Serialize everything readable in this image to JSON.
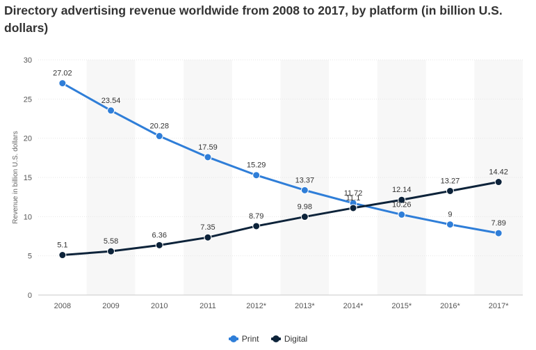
{
  "title": "Directory advertising revenue worldwide from 2008 to 2017, by platform (in billion U.S. dollars)",
  "chart_data": {
    "type": "line",
    "categories": [
      "2008",
      "2009",
      "2010",
      "2011",
      "2012*",
      "2013*",
      "2014*",
      "2015*",
      "2016*",
      "2017*"
    ],
    "series": [
      {
        "name": "Print",
        "color": "#2f7ed8",
        "values": [
          27.02,
          23.54,
          20.28,
          17.59,
          15.29,
          13.37,
          11.72,
          10.26,
          9,
          7.89
        ],
        "labels": [
          "27.02",
          "23.54",
          "20.28",
          "17.59",
          "15.29",
          "13.37",
          "11.72",
          "10.26",
          "9",
          "7.89"
        ]
      },
      {
        "name": "Digital",
        "color": "#0d233a",
        "values": [
          5.1,
          5.58,
          6.36,
          7.35,
          8.79,
          9.98,
          11.1,
          12.14,
          13.27,
          14.42
        ],
        "labels": [
          "5.1",
          "5.58",
          "6.36",
          "7.35",
          "8.79",
          "9.98",
          "11.1",
          "12.14",
          "13.27",
          "14.42"
        ]
      }
    ],
    "xlabel": "",
    "ylabel": "Revenue in billion U.S. dollars",
    "ylim": [
      0,
      30
    ],
    "yticks": [
      "0",
      "5",
      "10",
      "15",
      "20",
      "25",
      "30"
    ],
    "grid": true,
    "legend": "bottom-center"
  }
}
